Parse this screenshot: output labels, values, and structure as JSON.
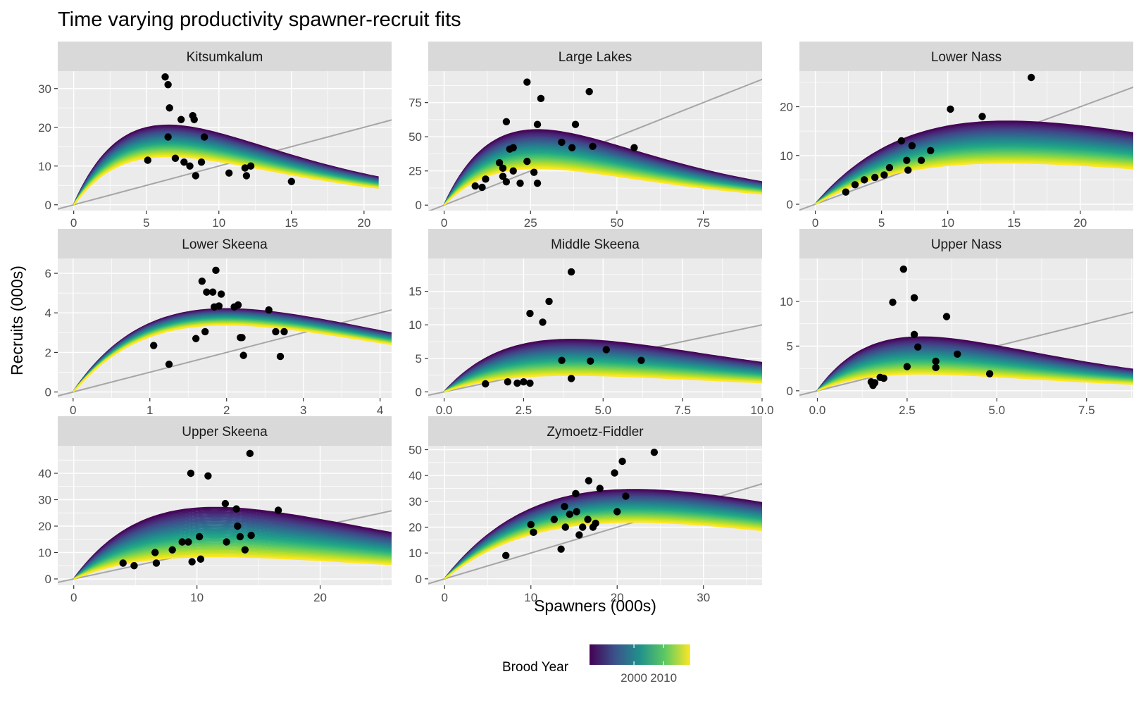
{
  "title": "Time varying productivity spawner-recruit fits",
  "chart_data": {
    "type": "line",
    "title": "Time varying productivity spawner-recruit fits",
    "xlabel": "Spawners (000s)",
    "ylabel": "Recruits (000s)",
    "grid": true,
    "legend": {
      "title": "Brood Year",
      "placement": "bottom",
      "type": "colorbar",
      "palette": "viridis",
      "range": [
        1985,
        2019
      ],
      "ticks": [
        2000,
        2010
      ],
      "tick_labels": [
        "2000",
        "2010"
      ]
    },
    "reference_line": "1:1 replacement line (grey)",
    "facets": [
      {
        "name": "Kitsumkalum",
        "xlim": [
          -1.1,
          21.9
        ],
        "ylim": [
          -1.5,
          34.5
        ],
        "xticks": [
          0,
          5,
          10,
          15,
          20
        ],
        "yticks": [
          0,
          10,
          20,
          30
        ],
        "fit": {
          "first_peak": 20.5,
          "last_peak": 12.5,
          "smax": 6.5,
          "xmax": 21
        },
        "points": [
          [
            6.3,
            33
          ],
          [
            6.5,
            31
          ],
          [
            6.6,
            25
          ],
          [
            6.5,
            17.5
          ],
          [
            5.1,
            11.5
          ],
          [
            7.0,
            12
          ],
          [
            7.4,
            22
          ],
          [
            7.6,
            11
          ],
          [
            8.0,
            10
          ],
          [
            8.2,
            23
          ],
          [
            8.3,
            22
          ],
          [
            8.4,
            7.5
          ],
          [
            8.8,
            11
          ],
          [
            9.0,
            17.5
          ],
          [
            10.7,
            8.2
          ],
          [
            11.8,
            9.5
          ],
          [
            11.9,
            7.5
          ],
          [
            12.2,
            10
          ],
          [
            15.0,
            6
          ]
        ]
      },
      {
        "name": "Large Lakes",
        "xlim": [
          -4.6,
          92
        ],
        "ylim": [
          -4,
          98
        ],
        "xticks": [
          0,
          25,
          50,
          75
        ],
        "yticks": [
          0,
          25,
          50,
          75
        ],
        "fit": {
          "first_peak": 55,
          "last_peak": 27,
          "smax": 27,
          "xmax": 92
        },
        "points": [
          [
            9,
            14
          ],
          [
            11,
            13
          ],
          [
            12,
            19
          ],
          [
            17,
            21
          ],
          [
            18,
            17
          ],
          [
            16,
            31
          ],
          [
            17,
            27
          ],
          [
            18,
            61
          ],
          [
            19,
            41
          ],
          [
            20,
            42
          ],
          [
            20,
            25
          ],
          [
            22,
            16
          ],
          [
            24,
            90
          ],
          [
            24,
            32
          ],
          [
            26,
            24
          ],
          [
            27,
            59
          ],
          [
            28,
            78
          ],
          [
            27,
            16
          ],
          [
            34,
            46
          ],
          [
            37,
            42
          ],
          [
            38,
            59
          ],
          [
            42,
            83
          ],
          [
            43,
            43
          ],
          [
            55,
            42
          ]
        ]
      },
      {
        "name": "Lower Nass",
        "xlim": [
          -1.2,
          24
        ],
        "ylim": [
          -1.3,
          27.3
        ],
        "xticks": [
          0,
          5,
          10,
          15,
          20
        ],
        "yticks": [
          0,
          10,
          20
        ],
        "fit": {
          "first_peak": 17,
          "last_peak": 8.5,
          "smax": 14.5,
          "xmax": 24
        },
        "points": [
          [
            2.3,
            2.5
          ],
          [
            3.0,
            4
          ],
          [
            3.7,
            5
          ],
          [
            4.5,
            5.5
          ],
          [
            5.2,
            6
          ],
          [
            5.6,
            7.5
          ],
          [
            6.5,
            13
          ],
          [
            6.9,
            9
          ],
          [
            7.3,
            12
          ],
          [
            7.0,
            7
          ],
          [
            8.0,
            9
          ],
          [
            8.7,
            11
          ],
          [
            10.2,
            19.5
          ],
          [
            12.6,
            18
          ],
          [
            16.3,
            26
          ]
        ]
      },
      {
        "name": "Lower Skeena",
        "xlim": [
          -0.2,
          4.15
        ],
        "ylim": [
          -0.3,
          6.75
        ],
        "xticks": [
          0,
          1,
          2,
          3,
          4
        ],
        "yticks": [
          0,
          2,
          4,
          6
        ],
        "fit": {
          "first_peak": 4.2,
          "last_peak": 3.4,
          "smax": 2.0,
          "xmax": 4.15
        },
        "points": [
          [
            1.05,
            2.35
          ],
          [
            1.25,
            1.4
          ],
          [
            1.6,
            2.7
          ],
          [
            1.68,
            5.6
          ],
          [
            1.72,
            3.05
          ],
          [
            1.74,
            5.05
          ],
          [
            1.82,
            5.05
          ],
          [
            1.84,
            4.3
          ],
          [
            1.86,
            6.15
          ],
          [
            1.9,
            4.35
          ],
          [
            1.93,
            4.95
          ],
          [
            2.1,
            4.3
          ],
          [
            2.15,
            4.4
          ],
          [
            2.18,
            2.75
          ],
          [
            2.2,
            2.75
          ],
          [
            2.22,
            1.85
          ],
          [
            2.55,
            4.15
          ],
          [
            2.64,
            3.05
          ],
          [
            2.7,
            1.8
          ],
          [
            2.75,
            3.05
          ]
        ]
      },
      {
        "name": "Middle Skeena",
        "xlim": [
          -0.5,
          10.0
        ],
        "ylim": [
          -0.9,
          19.9
        ],
        "xticks": [
          0.0,
          2.5,
          5.0,
          7.5,
          10.0
        ],
        "yticks": [
          0,
          5,
          10,
          15
        ],
        "tick_labels_x": [
          "0.0",
          "2.5",
          "5.0",
          "7.5",
          "10.0"
        ],
        "fit": {
          "first_peak": 7.8,
          "last_peak": 2.5,
          "smax": 4.0,
          "xmax": 10.0
        },
        "points": [
          [
            1.3,
            1.2
          ],
          [
            2.0,
            1.5
          ],
          [
            2.3,
            1.3
          ],
          [
            2.5,
            1.5
          ],
          [
            2.7,
            11.7
          ],
          [
            2.7,
            1.3
          ],
          [
            3.1,
            10.4
          ],
          [
            3.3,
            13.5
          ],
          [
            4.0,
            17.9
          ],
          [
            4.0,
            2.0
          ],
          [
            3.7,
            4.7
          ],
          [
            5.1,
            6.3
          ],
          [
            4.6,
            4.6
          ],
          [
            6.2,
            4.7
          ]
        ]
      },
      {
        "name": "Upper Nass",
        "xlim": [
          -0.5,
          8.8
        ],
        "ylim": [
          -0.8,
          14.8
        ],
        "xticks": [
          0.0,
          2.5,
          5.0,
          7.5
        ],
        "yticks": [
          0,
          5,
          10
        ],
        "tick_labels_x": [
          "0.0",
          "2.5",
          "5.0",
          "7.5"
        ],
        "fit": {
          "first_peak": 6.0,
          "last_peak": 1.9,
          "smax": 2.9,
          "xmax": 8.8
        },
        "points": [
          [
            1.5,
            1.0
          ],
          [
            1.55,
            0.6
          ],
          [
            1.6,
            0.9
          ],
          [
            1.75,
            1.5
          ],
          [
            1.85,
            1.4
          ],
          [
            2.1,
            9.9
          ],
          [
            2.4,
            13.6
          ],
          [
            2.5,
            2.7
          ],
          [
            2.7,
            10.4
          ],
          [
            2.7,
            6.3
          ],
          [
            2.8,
            4.9
          ],
          [
            3.3,
            3.3
          ],
          [
            3.3,
            2.6
          ],
          [
            3.6,
            8.3
          ],
          [
            3.9,
            4.1
          ],
          [
            4.8,
            1.9
          ]
        ]
      },
      {
        "name": "Upper Skeena",
        "xlim": [
          -1.3,
          25.8
        ],
        "ylim": [
          -2.4,
          50.4
        ],
        "xticks": [
          0,
          10,
          20
        ],
        "yticks": [
          0,
          10,
          20,
          30,
          40
        ],
        "fit": {
          "first_peak": 27,
          "last_peak": 8.5,
          "smax": 11.5,
          "xmax": 25.8
        },
        "points": [
          [
            4.0,
            6
          ],
          [
            4.9,
            5
          ],
          [
            6.6,
            10
          ],
          [
            6.7,
            6
          ],
          [
            8.0,
            11
          ],
          [
            8.8,
            14
          ],
          [
            9.3,
            14
          ],
          [
            9.5,
            40
          ],
          [
            9.6,
            6.5
          ],
          [
            10.2,
            16
          ],
          [
            10.3,
            7.5
          ],
          [
            10.9,
            39
          ],
          [
            12.3,
            28.5
          ],
          [
            12.4,
            14
          ],
          [
            13.2,
            26.5
          ],
          [
            13.3,
            20
          ],
          [
            13.5,
            16
          ],
          [
            13.9,
            11
          ],
          [
            14.3,
            47.5
          ],
          [
            14.4,
            16.5
          ],
          [
            16.6,
            26
          ]
        ]
      },
      {
        "name": "Zymoetz-Fiddler",
        "xlim": [
          -1.9,
          36.8
        ],
        "ylim": [
          -2.5,
          51.5
        ],
        "xticks": [
          0,
          10,
          20,
          30
        ],
        "yticks": [
          0,
          10,
          20,
          30,
          40,
          50
        ],
        "fit": {
          "first_peak": 34.5,
          "last_peak": 22,
          "smax": 22,
          "xmax": 36.8
        },
        "points": [
          [
            7.1,
            9
          ],
          [
            10,
            21
          ],
          [
            10.3,
            18
          ],
          [
            12.7,
            23
          ],
          [
            13.5,
            11.5
          ],
          [
            13.9,
            28
          ],
          [
            14,
            20
          ],
          [
            14.5,
            25
          ],
          [
            15.2,
            33
          ],
          [
            15.3,
            26
          ],
          [
            15.6,
            17
          ],
          [
            16,
            20
          ],
          [
            16.6,
            23
          ],
          [
            16.7,
            38
          ],
          [
            17.2,
            20
          ],
          [
            17.5,
            21.5
          ],
          [
            18,
            35
          ],
          [
            19.7,
            41
          ],
          [
            20,
            26
          ],
          [
            20.6,
            45.5
          ],
          [
            21,
            32
          ],
          [
            24.3,
            49
          ]
        ]
      }
    ]
  }
}
